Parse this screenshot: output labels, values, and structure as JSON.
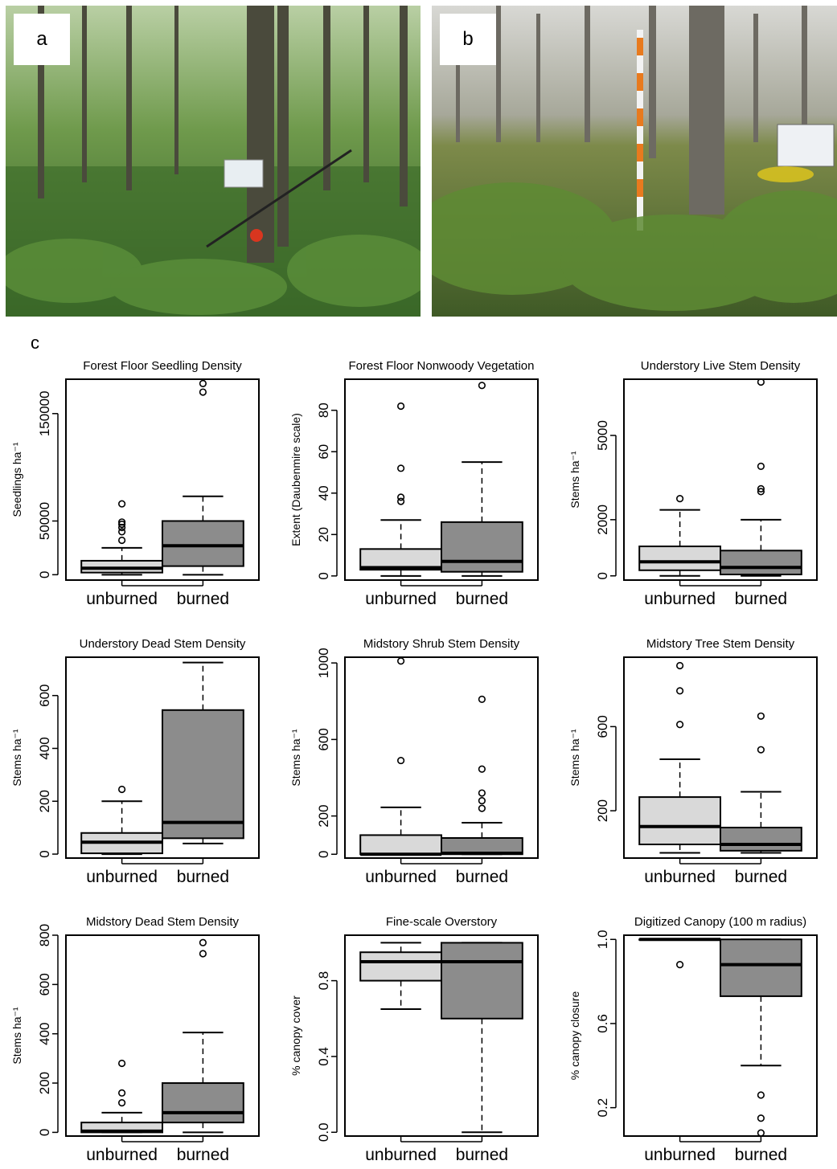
{
  "panels": {
    "a": "a",
    "b": "b",
    "c": "c"
  },
  "x_tick_labels": [
    "unburned",
    "burned"
  ],
  "colors": {
    "unburned_box": "#d9d9d9",
    "burned_box": "#8c8c8c"
  },
  "chart_data": [
    {
      "type": "boxplot",
      "title": "Forest Floor Seedling Density",
      "ylabel": "Seedlings ha⁻¹",
      "categories": [
        "unburned",
        "burned"
      ],
      "ylim": [
        -5000,
        182000
      ],
      "yticks": [
        0,
        50000,
        150000
      ],
      "ytick_labels": [
        "0",
        "50000",
        "150000"
      ],
      "boxes": [
        {
          "category": "unburned",
          "whisker_low": 0,
          "q1": 2000,
          "median": 6000,
          "q3": 13000,
          "whisker_high": 25000,
          "outliers": [
            32000,
            40000,
            44000,
            47000,
            49000,
            66000
          ]
        },
        {
          "category": "burned",
          "whisker_low": 0,
          "q1": 8000,
          "median": 27000,
          "q3": 50000,
          "whisker_high": 73000,
          "outliers": [
            170000,
            178000
          ]
        }
      ]
    },
    {
      "type": "boxplot",
      "title": "Forest Floor Nonwoody Vegetation",
      "ylabel": "Extent (Daubenmire scale)",
      "categories": [
        "unburned",
        "burned"
      ],
      "ylim": [
        -2,
        95
      ],
      "yticks": [
        0,
        20,
        40,
        60,
        80
      ],
      "ytick_labels": [
        "0",
        "20",
        "40",
        "60",
        "80"
      ],
      "boxes": [
        {
          "category": "unburned",
          "whisker_low": 0,
          "q1": 3,
          "median": 4,
          "q3": 13,
          "whisker_high": 27,
          "outliers": [
            36,
            38,
            52,
            82
          ]
        },
        {
          "category": "burned",
          "whisker_low": 0,
          "q1": 2,
          "median": 7,
          "q3": 26,
          "whisker_high": 55,
          "outliers": [
            92
          ]
        }
      ]
    },
    {
      "type": "boxplot",
      "title": "Understory Live Stem Density",
      "ylabel": "Stems ha⁻¹",
      "categories": [
        "unburned",
        "burned"
      ],
      "ylim": [
        -150,
        7000
      ],
      "yticks": [
        0,
        2000,
        5000
      ],
      "ytick_labels": [
        "0",
        "2000",
        "5000"
      ],
      "boxes": [
        {
          "category": "unburned",
          "whisker_low": 0,
          "q1": 200,
          "median": 500,
          "q3": 1050,
          "whisker_high": 2350,
          "outliers": [
            2750
          ]
        },
        {
          "category": "burned",
          "whisker_low": 0,
          "q1": 50,
          "median": 300,
          "q3": 900,
          "whisker_high": 2000,
          "outliers": [
            3000,
            3100,
            3900,
            6900
          ]
        }
      ]
    },
    {
      "type": "boxplot",
      "title": "Understory Dead Stem Density",
      "ylabel": "Stems ha⁻¹",
      "categories": [
        "unburned",
        "burned"
      ],
      "ylim": [
        -15,
        745
      ],
      "yticks": [
        0,
        200,
        400,
        600
      ],
      "ytick_labels": [
        "0",
        "200",
        "400",
        "600"
      ],
      "boxes": [
        {
          "category": "unburned",
          "whisker_low": 0,
          "q1": 3,
          "median": 45,
          "q3": 80,
          "whisker_high": 200,
          "outliers": [
            245
          ]
        },
        {
          "category": "burned",
          "whisker_low": 40,
          "q1": 60,
          "median": 120,
          "q3": 545,
          "whisker_high": 725,
          "outliers": []
        }
      ]
    },
    {
      "type": "boxplot",
      "title": "Midstory Shrub Stem Density",
      "ylabel": "Stems ha⁻¹",
      "categories": [
        "unburned",
        "burned"
      ],
      "ylim": [
        -20,
        1030
      ],
      "yticks": [
        0,
        200,
        600,
        1000
      ],
      "ytick_labels": [
        "0",
        "200",
        "600",
        "1000"
      ],
      "boxes": [
        {
          "category": "unburned",
          "whisker_low": 0,
          "q1": 0,
          "median": 0,
          "q3": 100,
          "whisker_high": 245,
          "outliers": [
            490,
            1010
          ]
        },
        {
          "category": "burned",
          "whisker_low": 0,
          "q1": 0,
          "median": 5,
          "q3": 85,
          "whisker_high": 165,
          "outliers": [
            240,
            280,
            320,
            445,
            810
          ]
        }
      ]
    },
    {
      "type": "boxplot",
      "title": "Midstory Tree Stem Density",
      "ylabel": "Stems ha⁻¹",
      "categories": [
        "unburned",
        "burned"
      ],
      "ylim": [
        -25,
        930
      ],
      "yticks": [
        200,
        600
      ],
      "ytick_labels": [
        "200",
        "600"
      ],
      "boxes": [
        {
          "category": "unburned",
          "whisker_low": 0,
          "q1": 40,
          "median": 125,
          "q3": 265,
          "whisker_high": 445,
          "outliers": [
            610,
            770,
            890
          ]
        },
        {
          "category": "burned",
          "whisker_low": 0,
          "q1": 10,
          "median": 40,
          "q3": 120,
          "whisker_high": 290,
          "outliers": [
            490,
            650
          ]
        }
      ]
    },
    {
      "type": "boxplot",
      "title": "Midstory Dead Stem Density",
      "ylabel": "Stems ha⁻¹",
      "categories": [
        "unburned",
        "burned"
      ],
      "ylim": [
        -15,
        800
      ],
      "yticks": [
        0,
        200,
        400,
        600,
        800
      ],
      "ytick_labels": [
        "0",
        "200",
        "400",
        "600",
        "800"
      ],
      "boxes": [
        {
          "category": "unburned",
          "whisker_low": 0,
          "q1": 0,
          "median": 5,
          "q3": 40,
          "whisker_high": 80,
          "outliers": [
            120,
            160,
            280
          ]
        },
        {
          "category": "burned",
          "whisker_low": 0,
          "q1": 40,
          "median": 80,
          "q3": 200,
          "whisker_high": 405,
          "outliers": [
            725,
            770
          ]
        }
      ]
    },
    {
      "type": "boxplot",
      "title": "Fine-scale Overstory",
      "ylabel": "% canopy cover",
      "categories": [
        "unburned",
        "burned"
      ],
      "ylim": [
        -0.02,
        1.04
      ],
      "yticks": [
        0.0,
        0.4,
        0.8
      ],
      "ytick_labels": [
        "0.0",
        "0.4",
        "0.8"
      ],
      "boxes": [
        {
          "category": "unburned",
          "whisker_low": 0.65,
          "q1": 0.8,
          "median": 0.9,
          "q3": 0.95,
          "whisker_high": 1.0,
          "outliers": []
        },
        {
          "category": "burned",
          "whisker_low": 0.0,
          "q1": 0.6,
          "median": 0.9,
          "q3": 1.0,
          "whisker_high": 1.0,
          "outliers": []
        }
      ]
    },
    {
      "type": "boxplot",
      "title": "Digitized Canopy (100 m radius)",
      "ylabel": "% canopy closure",
      "categories": [
        "unburned",
        "burned"
      ],
      "ylim": [
        0.065,
        1.02
      ],
      "yticks": [
        0.2,
        0.6,
        1.0
      ],
      "ytick_labels": [
        "0.2",
        "0.6",
        "1.0"
      ],
      "boxes": [
        {
          "category": "unburned",
          "whisker_low": 1.0,
          "q1": 1.0,
          "median": 1.0,
          "q3": 1.0,
          "whisker_high": 1.0,
          "outliers": [
            0.88
          ]
        },
        {
          "category": "burned",
          "whisker_low": 0.4,
          "q1": 0.73,
          "median": 0.88,
          "q3": 1.0,
          "whisker_high": 1.0,
          "outliers": [
            0.08,
            0.15,
            0.26
          ]
        }
      ]
    }
  ]
}
